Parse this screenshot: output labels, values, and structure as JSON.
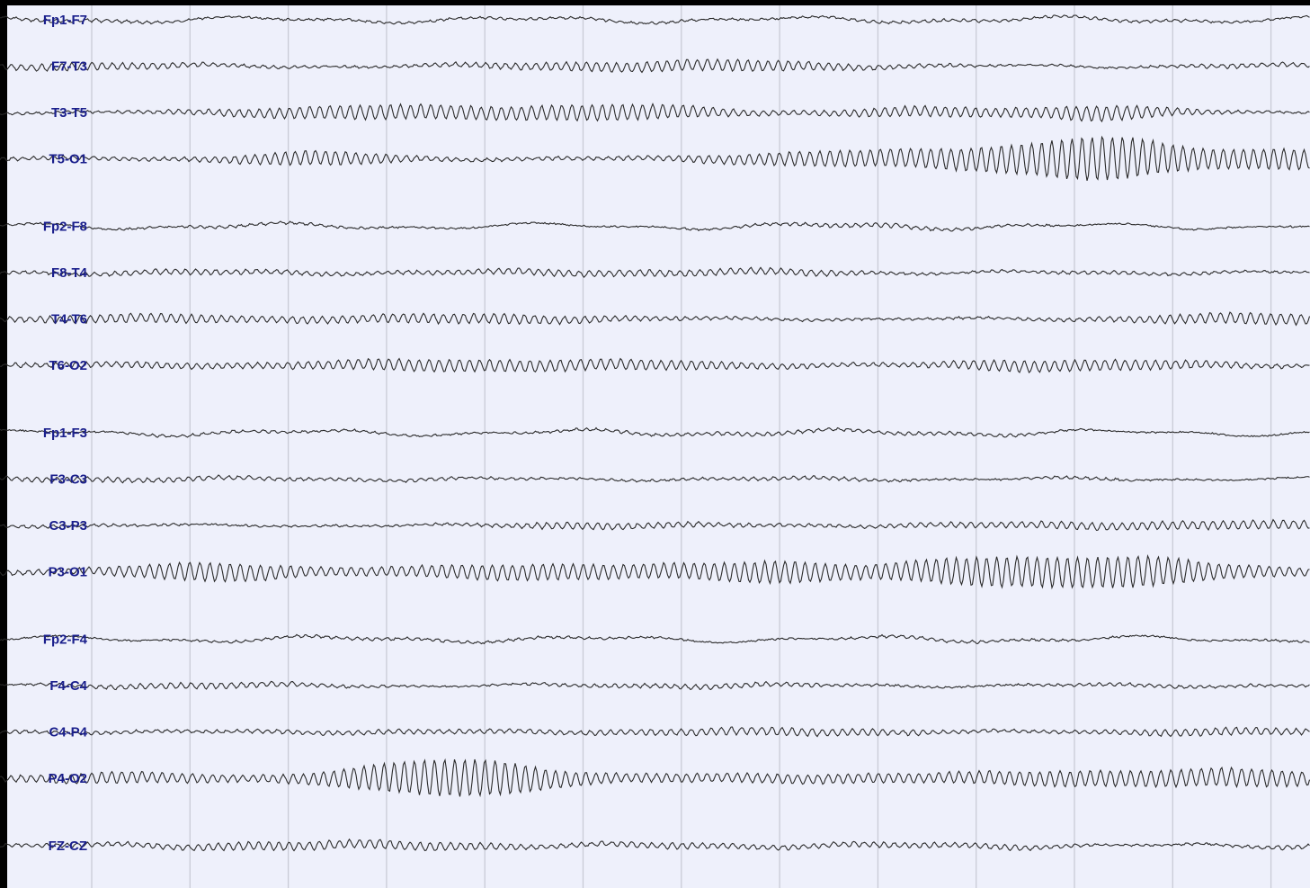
{
  "colors": {
    "background": "#000000",
    "paper": "#eef0fb",
    "grid": "#c9cbd6",
    "trace": "#2a2a2a",
    "label": "#1a1f8c"
  },
  "chart_data": {
    "type": "line",
    "title": "",
    "xlabel": "",
    "ylabel": "",
    "grid": true,
    "grid_major_columns": 13,
    "groups": [
      [
        "Fp1-F7",
        "F7-T3",
        "T3-T5",
        "T5-O1"
      ],
      [
        "Fp2-F8",
        "F8-T4",
        "T4-T6",
        "T6-O2"
      ],
      [
        "Fp1-F3",
        "F3-C3",
        "C3-P3",
        "P3-O1"
      ],
      [
        "Fp2-F4",
        "F4-C4",
        "C4-P4",
        "P4-O2"
      ],
      [
        "FZ-CZ"
      ]
    ],
    "series": [
      {
        "name": "Fp1-F7",
        "alpha_amplitude": 0.2,
        "slow_amplitude": 0.8
      },
      {
        "name": "F7-T3",
        "alpha_amplitude": 0.5,
        "slow_amplitude": 0.4
      },
      {
        "name": "T3-T5",
        "alpha_amplitude": 0.9,
        "slow_amplitude": 0.3
      },
      {
        "name": "T5-O1",
        "alpha_amplitude": 1.5,
        "slow_amplitude": 0.3
      },
      {
        "name": "Fp2-F8",
        "alpha_amplitude": 0.2,
        "slow_amplitude": 0.8
      },
      {
        "name": "F8-T4",
        "alpha_amplitude": 0.5,
        "slow_amplitude": 0.4
      },
      {
        "name": "T4-T6",
        "alpha_amplitude": 0.8,
        "slow_amplitude": 0.3
      },
      {
        "name": "T6-O2",
        "alpha_amplitude": 0.9,
        "slow_amplitude": 0.3
      },
      {
        "name": "Fp1-F3",
        "alpha_amplitude": 0.2,
        "slow_amplitude": 0.8
      },
      {
        "name": "F3-C3",
        "alpha_amplitude": 0.3,
        "slow_amplitude": 0.4
      },
      {
        "name": "C3-P3",
        "alpha_amplitude": 0.5,
        "slow_amplitude": 0.3
      },
      {
        "name": "P3-O1",
        "alpha_amplitude": 2.0,
        "slow_amplitude": 0.3
      },
      {
        "name": "Fp2-F4",
        "alpha_amplitude": 0.2,
        "slow_amplitude": 0.8
      },
      {
        "name": "F4-C4",
        "alpha_amplitude": 0.3,
        "slow_amplitude": 0.4
      },
      {
        "name": "C4-P4",
        "alpha_amplitude": 0.5,
        "slow_amplitude": 0.3
      },
      {
        "name": "P4-O2",
        "alpha_amplitude": 1.6,
        "slow_amplitude": 0.3
      },
      {
        "name": "FZ-CZ",
        "alpha_amplitude": 0.6,
        "slow_amplitude": 0.5
      }
    ]
  }
}
